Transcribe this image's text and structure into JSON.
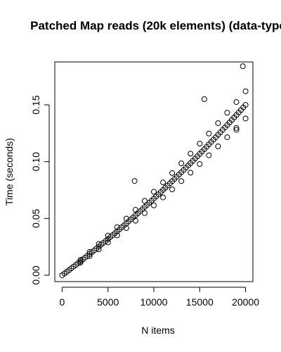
{
  "chart_data": {
    "type": "scatter",
    "title": "Patched Map reads (20k elements) (data-type",
    "x_label": "N items",
    "y_label": "Time (seconds)",
    "xlim": [
      -800,
      20800
    ],
    "ylim": [
      -0.0056,
      0.1878
    ],
    "xticks": [
      0,
      5000,
      10000,
      15000,
      20000
    ],
    "yticks": [
      {
        "value": 0,
        "label": "0.00"
      },
      {
        "value": 0.05,
        "label": "0.05"
      },
      {
        "value": 0.1,
        "label": "0.10"
      },
      {
        "value": 0.15,
        "label": "0.15"
      }
    ],
    "color": "#000000",
    "x": [
      0,
      250,
      500,
      750,
      1000,
      1250,
      1500,
      1750,
      2000,
      2250,
      2500,
      2750,
      3000,
      3250,
      3500,
      3750,
      4000,
      4250,
      4500,
      4750,
      5000,
      5250,
      5500,
      5750,
      6000,
      6250,
      6500,
      6750,
      7000,
      7250,
      7500,
      7750,
      8000,
      8250,
      8500,
      8750,
      9000,
      9250,
      9500,
      9750,
      10000,
      10250,
      10500,
      10750,
      11000,
      11250,
      11500,
      11750,
      12000,
      12250,
      12500,
      12750,
      13000,
      13250,
      13500,
      13750,
      14000,
      14250,
      14500,
      14750,
      15000,
      15250,
      15500,
      15750,
      16000,
      16250,
      16500,
      16750,
      17000,
      17250,
      17500,
      17750,
      18000,
      18250,
      18500,
      18750,
      19000,
      19250,
      19500,
      19750,
      20000,
      2000,
      3000,
      4000,
      5000,
      6000,
      7000,
      8000,
      9000,
      10000,
      11000,
      12000,
      13000,
      14000,
      15000,
      16000,
      17000,
      18000,
      19000,
      20000,
      2000,
      3000,
      4000,
      5000,
      6000,
      7000,
      8000,
      9000,
      10000,
      11000,
      12000,
      13000,
      14000,
      15000,
      16000,
      17000,
      18000,
      19000,
      20000,
      7900,
      15500,
      19700,
      19000
    ],
    "y": [
      0,
      0.0015,
      0.003,
      0.0045,
      0.0061,
      0.0076,
      0.0092,
      0.0107,
      0.0123,
      0.0139,
      0.0155,
      0.0171,
      0.0187,
      0.0203,
      0.0219,
      0.0236,
      0.0252,
      0.0269,
      0.0285,
      0.0302,
      0.0319,
      0.0336,
      0.0353,
      0.037,
      0.0387,
      0.0404,
      0.0422,
      0.0439,
      0.0457,
      0.0474,
      0.0492,
      0.051,
      0.0528,
      0.0546,
      0.0564,
      0.0582,
      0.0601,
      0.0619,
      0.0638,
      0.0656,
      0.0675,
      0.0694,
      0.0713,
      0.0732,
      0.0751,
      0.077,
      0.0789,
      0.0809,
      0.0828,
      0.0848,
      0.0867,
      0.0887,
      0.0907,
      0.0927,
      0.0947,
      0.0967,
      0.0987,
      0.1007,
      0.1028,
      0.1048,
      0.1069,
      0.1089,
      0.111,
      0.1131,
      0.1152,
      0.1173,
      0.1194,
      0.1215,
      0.1237,
      0.1258,
      0.128,
      0.1301,
      0.1323,
      0.1345,
      0.1367,
      0.1389,
      0.1411,
      0.1433,
      0.1455,
      0.1478,
      0.15,
      0.0135,
      0.0205,
      0.0276,
      0.0349,
      0.0423,
      0.0499,
      0.0576,
      0.0655,
      0.0735,
      0.0817,
      0.09,
      0.0985,
      0.1071,
      0.1159,
      0.1248,
      0.1339,
      0.1431,
      0.1525,
      0.162,
      0.0111,
      0.0169,
      0.0228,
      0.0289,
      0.0351,
      0.0415,
      0.048,
      0.0547,
      0.0615,
      0.0685,
      0.0756,
      0.0829,
      0.0903,
      0.0979,
      0.1056,
      0.1135,
      0.1215,
      0.1297,
      0.138,
      0.083,
      0.155,
      0.184,
      0.128
    ]
  }
}
